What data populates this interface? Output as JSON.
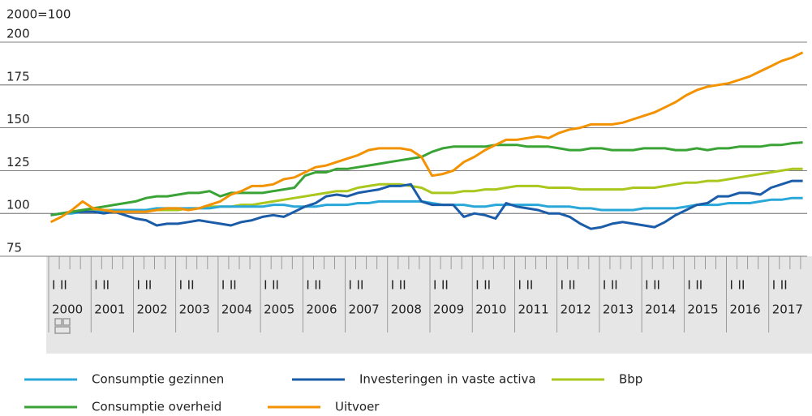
{
  "chart_data": {
    "type": "line",
    "axis_title": "2000=100",
    "categories": [
      "2000",
      null,
      null,
      null,
      "2001",
      null,
      null,
      null,
      "2002",
      null,
      null,
      null,
      "2003",
      null,
      null,
      null,
      "2004",
      null,
      null,
      null,
      "2005",
      null,
      null,
      null,
      "2006",
      null,
      null,
      null,
      "2007",
      null,
      null,
      null,
      "2008",
      null,
      null,
      null,
      "2009",
      null,
      null,
      null,
      "2010",
      null,
      null,
      null,
      "2011",
      null,
      null,
      null,
      "2012",
      null,
      null,
      null,
      "2013",
      null,
      null,
      null,
      "2014",
      null,
      null,
      null,
      "2015",
      null,
      null,
      null,
      "2016",
      null,
      null,
      null,
      "2017",
      null,
      null,
      null
    ],
    "quarter_labels": [
      "I",
      "II"
    ],
    "ylim": [
      75,
      200
    ],
    "yticks": [
      75,
      100,
      125,
      150,
      175,
      200
    ],
    "grid": true,
    "series": [
      {
        "name": "Consumptie gezinnen",
        "color": "#2aa7d9",
        "values": [
          99,
          100,
          100,
          101,
          101,
          101,
          102,
          102,
          102,
          102,
          103,
          103,
          103,
          103,
          103,
          103,
          104,
          104,
          104,
          104,
          104,
          105,
          105,
          104,
          104,
          104,
          105,
          105,
          105,
          106,
          106,
          107,
          107,
          107,
          107,
          107,
          106,
          105,
          105,
          105,
          104,
          104,
          105,
          105,
          105,
          105,
          105,
          104,
          104,
          104,
          103,
          103,
          102,
          102,
          102,
          102,
          103,
          103,
          103,
          103,
          104,
          105,
          105,
          105,
          106,
          106,
          106,
          107,
          108,
          108,
          109,
          109
        ]
      },
      {
        "name": "Investeringen in vaste activa",
        "color": "#1b5ca8",
        "values": [
          99,
          100,
          101,
          101,
          101,
          100,
          101,
          99,
          97,
          96,
          93,
          94,
          94,
          95,
          96,
          95,
          94,
          93,
          95,
          96,
          98,
          99,
          98,
          101,
          104,
          106,
          110,
          111,
          110,
          112,
          113,
          114,
          116,
          116,
          117,
          107,
          105,
          105,
          105,
          98,
          100,
          99,
          97,
          106,
          104,
          103,
          102,
          100,
          100,
          98,
          94,
          91,
          92,
          94,
          95,
          94,
          93,
          92,
          95,
          99,
          102,
          105,
          106,
          110,
          110,
          112,
          112,
          111,
          115,
          117,
          119,
          119
        ]
      },
      {
        "name": "Bbp",
        "color": "#a9c71d",
        "values": [
          99,
          100,
          101,
          102,
          102,
          102,
          102,
          102,
          102,
          102,
          102,
          102,
          102,
          103,
          103,
          104,
          104,
          104,
          105,
          105,
          106,
          107,
          108,
          109,
          110,
          111,
          112,
          113,
          113,
          115,
          116,
          117,
          117,
          117,
          116,
          115,
          112,
          112,
          112,
          113,
          113,
          114,
          114,
          115,
          116,
          116,
          116,
          115,
          115,
          115,
          114,
          114,
          114,
          114,
          114,
          115,
          115,
          115,
          116,
          117,
          118,
          118,
          119,
          119,
          120,
          121,
          122,
          123,
          124,
          125,
          126,
          126
        ]
      },
      {
        "name": "Consumptie overheid",
        "color": "#3aa335",
        "values": [
          99,
          100,
          101,
          102,
          103,
          104,
          105,
          106,
          107,
          109,
          110,
          110,
          111,
          112,
          112,
          113,
          110,
          112,
          112,
          112,
          112,
          113,
          114,
          115,
          122,
          124,
          124,
          126,
          126,
          127,
          128,
          129,
          130,
          131,
          132,
          133,
          136,
          138,
          139,
          139,
          139,
          139,
          140,
          140,
          140,
          139,
          139,
          139,
          138,
          137,
          137,
          138,
          138,
          137,
          137,
          137,
          138,
          138,
          138,
          137,
          137,
          138,
          137,
          138,
          138,
          139,
          139,
          139,
          140,
          140,
          141,
          141.5
        ]
      },
      {
        "name": "Uitvoer",
        "color": "#f39200",
        "values": [
          95,
          98,
          102,
          107,
          103,
          102,
          101,
          101,
          101,
          101,
          102,
          103,
          103,
          102,
          103,
          105,
          107,
          111,
          113,
          116,
          116,
          117,
          120,
          121,
          124,
          127,
          128,
          130,
          132,
          134,
          137,
          138,
          138,
          138,
          137,
          133,
          122,
          123,
          125,
          130,
          133,
          137,
          140,
          143,
          143,
          144,
          145,
          144,
          147,
          149,
          150,
          152,
          152,
          152,
          153,
          155,
          157,
          159,
          162,
          165,
          169,
          172,
          174,
          175,
          176,
          178,
          180,
          183,
          186,
          189,
          191,
          194
        ]
      }
    ]
  }
}
